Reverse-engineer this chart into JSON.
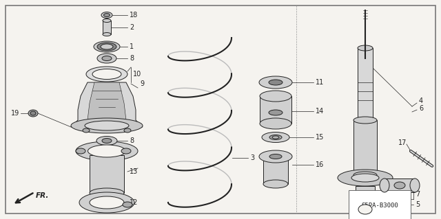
{
  "bg_color": "#f5f3ef",
  "line_color": "#222222",
  "label_color": "#111111",
  "diagram_id": "S5PA-B3000",
  "part_fill": "#e8e8e8",
  "part_dark": "#aaaaaa",
  "border_lw": 1.0,
  "line_lw": 0.7
}
